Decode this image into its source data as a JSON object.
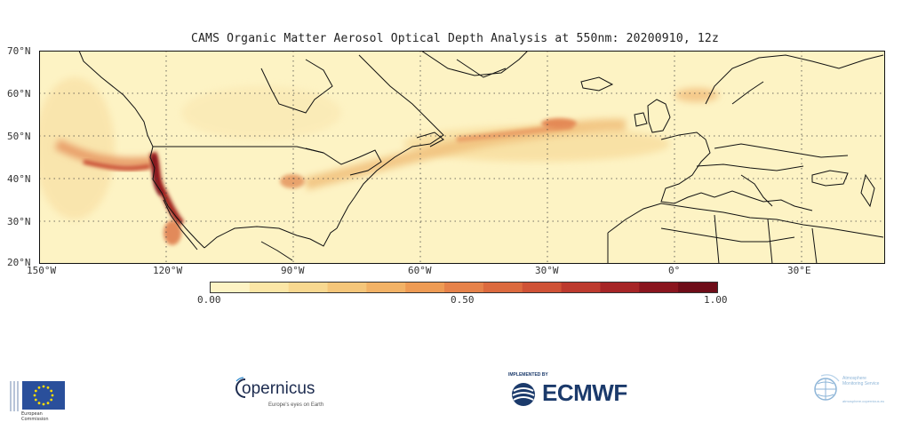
{
  "title": "CAMS Organic Matter Aerosol Optical Depth Analysis at 550nm: 20200910, 12z",
  "map": {
    "lat_labels": [
      "70°N",
      "60°N",
      "50°N",
      "40°N",
      "30°N",
      "20°N"
    ],
    "lon_labels": [
      "150°W",
      "120°W",
      "90°W",
      "60°W",
      "30°W",
      "0°",
      "30°E"
    ],
    "lat_range": [
      20,
      70
    ],
    "lon_range": [
      -150,
      50
    ],
    "background_color": "#fdf3c4",
    "line_color": "#111111",
    "grid": "dotted"
  },
  "colorbar": {
    "min_label": "0.00",
    "mid_label": "0.50",
    "max_label": "1.00",
    "colors": [
      "#fdf3c4",
      "#fbe6a6",
      "#f8d890",
      "#f5c67a",
      "#f2b266",
      "#ee9b54",
      "#e6824a",
      "#dc6a3e",
      "#cf5236",
      "#bd3a2e",
      "#a62526",
      "#8a151e",
      "#6e0c18"
    ]
  },
  "logos": {
    "eu_text": "European\nCommission",
    "copernicus_name": "opernicus",
    "copernicus_tagline": "Europe's eyes on Earth",
    "ecmwf_implemented": "IMPLEMENTED BY",
    "ecmwf_name": "ECMWF",
    "atmosphere_text": "Atmosphere\nMonitoring Service",
    "atmosphere_url": "atmosphere.copernicus.eu"
  }
}
